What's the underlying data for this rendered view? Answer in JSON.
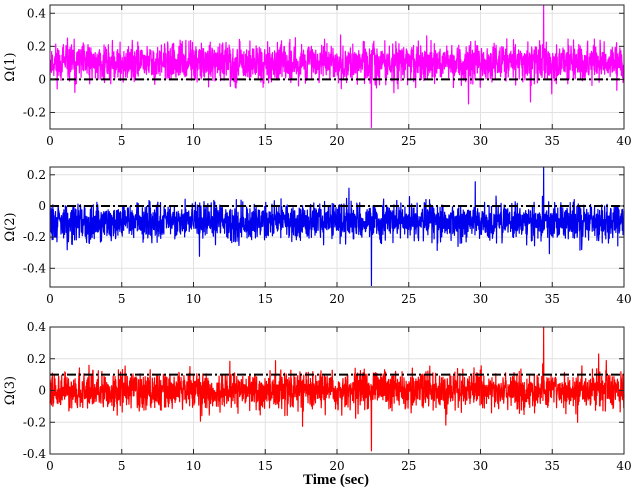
{
  "xlabel": "Time (sec)",
  "chart_data": [
    {
      "type": "line",
      "ylabel": "Ω(1)",
      "xlim": [
        0,
        40
      ],
      "ylim": [
        -0.3,
        0.45
      ],
      "xticks": [
        0,
        5,
        10,
        15,
        20,
        25,
        30,
        35,
        40
      ],
      "yticks": [
        -0.2,
        0,
        0.2,
        0.4
      ],
      "ytick_labels": [
        "-0.2",
        "0",
        "0.2",
        "0.4"
      ],
      "grid": true,
      "series": [
        {
          "color": "#ff00ff",
          "mean": 0.1,
          "spread": 0.1,
          "min": -0.29,
          "max": 0.45,
          "kind": "noise"
        },
        {
          "color": "#000000",
          "value": 0.0,
          "style": "dash-dot",
          "kind": "reference"
        }
      ]
    },
    {
      "type": "line",
      "ylabel": "Ω(2)",
      "xlim": [
        0,
        40
      ],
      "ylim": [
        -0.52,
        0.25
      ],
      "xticks": [
        0,
        5,
        10,
        15,
        20,
        25,
        30,
        35,
        40
      ],
      "yticks": [
        -0.4,
        -0.2,
        0,
        0.2
      ],
      "ytick_labels": [
        "-0.4",
        "-0.2",
        "0",
        "0.2"
      ],
      "grid": true,
      "series": [
        {
          "color": "#0000ee",
          "mean": -0.1,
          "spread": 0.1,
          "min": -0.51,
          "max": 0.25,
          "kind": "noise"
        },
        {
          "color": "#000000",
          "value": 0.0,
          "style": "dash-dot",
          "kind": "reference"
        }
      ]
    },
    {
      "type": "line",
      "ylabel": "Ω(3)",
      "xlim": [
        0,
        40
      ],
      "ylim": [
        -0.4,
        0.4
      ],
      "xticks": [
        0,
        5,
        10,
        15,
        20,
        25,
        30,
        35,
        40
      ],
      "yticks": [
        -0.4,
        -0.2,
        0,
        0.2,
        0.4
      ],
      "ytick_labels": [
        "-0.4",
        "-0.2",
        "0",
        "0.2",
        "0.4"
      ],
      "grid": true,
      "series": [
        {
          "color": "#ff0000",
          "mean": 0.0,
          "spread": 0.1,
          "min": -0.38,
          "max": 0.4,
          "kind": "noise"
        },
        {
          "color": "#000000",
          "value": 0.1,
          "style": "dash-dot",
          "kind": "reference"
        }
      ]
    }
  ]
}
